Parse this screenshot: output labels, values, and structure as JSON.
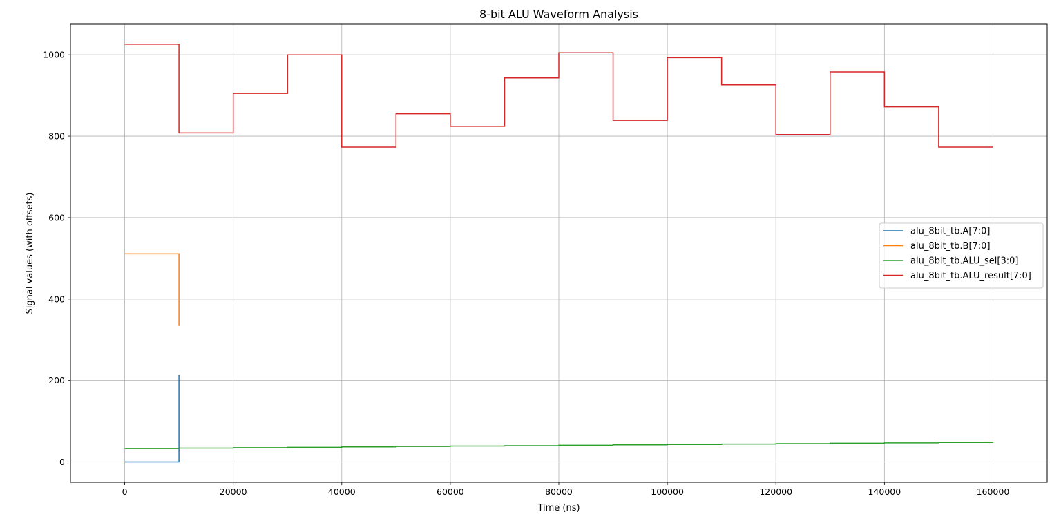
{
  "chart_data": {
    "type": "line",
    "step": "post",
    "title": "8-bit ALU Waveform Analysis",
    "xlabel": "Time (ns)",
    "ylabel": "Signal values (with offsets)",
    "xlim": [
      -10000,
      170000
    ],
    "ylim": [
      -50,
      1075
    ],
    "xticks": [
      0,
      20000,
      40000,
      60000,
      80000,
      100000,
      120000,
      140000,
      160000
    ],
    "yticks": [
      0,
      200,
      400,
      600,
      800,
      1000
    ],
    "grid": true,
    "legend_position": "center-right",
    "series": [
      {
        "name": "alu_8bit_tb.A[7:0]",
        "color": "#1f77b4",
        "x": [
          0,
          10000,
          10000
        ],
        "y": [
          0,
          0,
          214
        ]
      },
      {
        "name": "alu_8bit_tb.B[7:0]",
        "color": "#ff7f0e",
        "x": [
          0,
          10000,
          10000
        ],
        "y": [
          511,
          511,
          334
        ]
      },
      {
        "name": "alu_8bit_tb.ALU_sel[3:0]",
        "color": "#2ca02c",
        "x": [
          0,
          10000,
          20000,
          30000,
          40000,
          50000,
          60000,
          70000,
          80000,
          90000,
          100000,
          110000,
          120000,
          130000,
          140000,
          150000,
          160000
        ],
        "y": [
          33,
          34,
          35,
          36,
          37,
          38,
          39,
          40,
          41,
          42,
          43,
          44,
          45,
          46,
          47,
          48,
          49
        ]
      },
      {
        "name": "alu_8bit_tb.ALU_result[7:0]",
        "color": "#d62728",
        "x": [
          0,
          10000,
          20000,
          30000,
          40000,
          50000,
          60000,
          70000,
          80000,
          90000,
          100000,
          110000,
          120000,
          130000,
          140000,
          150000,
          160000
        ],
        "y": [
          1026,
          808,
          905,
          1000,
          773,
          855,
          824,
          943,
          1005,
          839,
          993,
          926,
          804,
          958,
          872,
          773,
          773
        ]
      }
    ]
  }
}
